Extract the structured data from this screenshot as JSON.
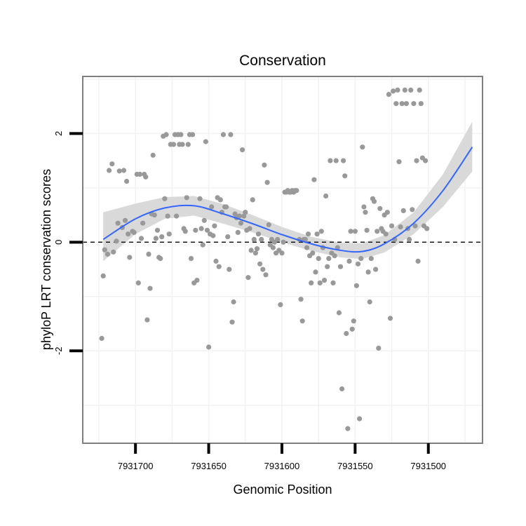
{
  "chart_data": {
    "type": "scatter",
    "title": "Conservation",
    "xlabel": "Genomic Position",
    "ylabel": "phyloP LRT conservation scores",
    "x_reversed": true,
    "xlim": [
      7931736,
      7931463
    ],
    "ylim": [
      -3.7,
      3.05
    ],
    "x_ticks": [
      7931700,
      7931650,
      7931600,
      7931550,
      7931500
    ],
    "x_tick_labels": [
      "7931700",
      "7931650",
      "7931600",
      "7931550",
      "7931500"
    ],
    "y_ticks": [
      -2,
      0,
      2
    ],
    "y_tick_labels": [
      "-2",
      "0",
      "2"
    ],
    "reference_line": {
      "y": 0,
      "style": "dashed",
      "color": "#000000"
    },
    "grid": true,
    "colors": {
      "points": "#999999",
      "trend": "#3366ff",
      "ribbon": "#d9d9d9",
      "panel_border": "#7f7f7f",
      "grid": "#f2f2f2"
    },
    "trend_line": {
      "x": [
        7931722,
        7931700,
        7931680,
        7931660,
        7931640,
        7931620,
        7931600,
        7931580,
        7931560,
        7931545,
        7931530,
        7931510,
        7931490,
        7931470
      ],
      "y": [
        0.05,
        0.43,
        0.63,
        0.67,
        0.52,
        0.34,
        0.14,
        -0.03,
        -0.15,
        -0.17,
        -0.03,
        0.35,
        0.95,
        1.75
      ],
      "ci_upper": [
        0.55,
        0.71,
        0.83,
        0.85,
        0.7,
        0.5,
        0.28,
        0.1,
        -0.01,
        -0.02,
        0.13,
        0.55,
        1.25,
        2.22
      ],
      "ci_lower": [
        -0.35,
        0.15,
        0.43,
        0.49,
        0.34,
        0.18,
        0.0,
        -0.16,
        -0.28,
        -0.31,
        -0.19,
        0.15,
        0.65,
        1.3
      ]
    },
    "points": [
      [
        7931723,
        -1.77
      ],
      [
        7931722,
        -0.62
      ],
      [
        7931721,
        -0.14
      ],
      [
        7931719,
        -0.22
      ],
      [
        7931718,
        1.32
      ],
      [
        7931716,
        1.44
      ],
      [
        7931715,
        -0.18
      ],
      [
        7931713,
        0.02
      ],
      [
        7931712,
        0.35
      ],
      [
        7931711,
        1.31
      ],
      [
        7931709,
        0.27
      ],
      [
        7931708,
        1.32
      ],
      [
        7931707,
        0.4
      ],
      [
        7931706,
        1.12
      ],
      [
        7931705,
        0.15
      ],
      [
        7931704,
        -0.28
      ],
      [
        7931702,
        0.2
      ],
      [
        7931701,
        0.18
      ],
      [
        7931699,
        1.25
      ],
      [
        7931698,
        -0.75
      ],
      [
        7931697,
        1.25
      ],
      [
        7931696,
        0.07
      ],
      [
        7931695,
        0.35
      ],
      [
        7931694,
        1.25
      ],
      [
        7931693,
        1.2
      ],
      [
        7931692,
        -1.43
      ],
      [
        7931691,
        -0.22
      ],
      [
        7931690,
        -0.85
      ],
      [
        7931689,
        0.52
      ],
      [
        7931688,
        1.6
      ],
      [
        7931687,
        0.5
      ],
      [
        7931686,
        0.07
      ],
      [
        7931685,
        0.22
      ],
      [
        7931684,
        -0.28
      ],
      [
        7931683,
        -0.3
      ],
      [
        7931682,
        0.1
      ],
      [
        7931681,
        1.95
      ],
      [
        7931680,
        0.8
      ],
      [
        7931679,
        1.98
      ],
      [
        7931678,
        0.48
      ],
      [
        7931677,
        0.15
      ],
      [
        7931676,
        1.8
      ],
      [
        7931674,
        1.8
      ],
      [
        7931673,
        1.98
      ],
      [
        7931672,
        0.48
      ],
      [
        7931671,
        1.98
      ],
      [
        7931670,
        1.8
      ],
      [
        7931669,
        1.98
      ],
      [
        7931668,
        1.8
      ],
      [
        7931667,
        0.25
      ],
      [
        7931666,
        0.2
      ],
      [
        7931665,
        0.82
      ],
      [
        7931664,
        1.8
      ],
      [
        7931663,
        1.98
      ],
      [
        7931662,
        -0.3
      ],
      [
        7931661,
        1.98
      ],
      [
        7931660,
        -0.75
      ],
      [
        7931659,
        0.22
      ],
      [
        7931658,
        -0.7
      ],
      [
        7931656,
        0.8
      ],
      [
        7931655,
        0.25
      ],
      [
        7931654,
        -0.05
      ],
      [
        7931653,
        0.4
      ],
      [
        7931652,
        1.85
      ],
      [
        7931651,
        0.22
      ],
      [
        7931650,
        -1.93
      ],
      [
        7931649,
        0.15
      ],
      [
        7931648,
        0.65
      ],
      [
        7931647,
        0.12
      ],
      [
        7931646,
        0.3
      ],
      [
        7931645,
        -0.35
      ],
      [
        7931644,
        0.82
      ],
      [
        7931643,
        -0.45
      ],
      [
        7931642,
        0.78
      ],
      [
        7931641,
        0.55
      ],
      [
        7931640,
        1.98
      ],
      [
        7931639,
        0.65
      ],
      [
        7931638,
        0.65
      ],
      [
        7931637,
        0.1
      ],
      [
        7931636,
        -0.5
      ],
      [
        7931635,
        1.98
      ],
      [
        7931634,
        -1.47
      ],
      [
        7931633,
        -1.1
      ],
      [
        7931632,
        0.52
      ],
      [
        7931631,
        0.45
      ],
      [
        7931630,
        0.18
      ],
      [
        7931629,
        0.48
      ],
      [
        7931628,
        0.35
      ],
      [
        7931627,
        1.7
      ],
      [
        7931626,
        0.48
      ],
      [
        7931625,
        0.55
      ],
      [
        7931624,
        0.22
      ],
      [
        7931623,
        -0.65
      ],
      [
        7931622,
        0.25
      ],
      [
        7931621,
        -0.15
      ],
      [
        7931620,
        0.78
      ],
      [
        7931619,
        0.05
      ],
      [
        7931618,
        -0.2
      ],
      [
        7931617,
        -0.12
      ],
      [
        7931616,
        0.15
      ],
      [
        7931615,
        -0.4
      ],
      [
        7931614,
        0.05
      ],
      [
        7931613,
        -0.5
      ],
      [
        7931612,
        1.42
      ],
      [
        7931611,
        -0.6
      ],
      [
        7931610,
        1.1
      ],
      [
        7931609,
        0.32
      ],
      [
        7931608,
        -0.05
      ],
      [
        7931607,
        0.05
      ],
      [
        7931606,
        -0.1
      ],
      [
        7931605,
        0.0
      ],
      [
        7931604,
        -0.2
      ],
      [
        7931603,
        0.05
      ],
      [
        7931602,
        -0.15
      ],
      [
        7931601,
        -1.15
      ],
      [
        7931600,
        -0.2
      ],
      [
        7931599,
        0.0
      ],
      [
        7931598,
        0.92
      ],
      [
        7931597,
        0.92
      ],
      [
        7931596,
        0.95
      ],
      [
        7931595,
        0.92
      ],
      [
        7931594,
        0.92
      ],
      [
        7931593,
        0.95
      ],
      [
        7931592,
        0.92
      ],
      [
        7931591,
        0.95
      ],
      [
        7931590,
        0.95
      ],
      [
        7931588,
        0.05
      ],
      [
        7931587,
        -1.05
      ],
      [
        7931586,
        -1.45
      ],
      [
        7931585,
        0.05
      ],
      [
        7931584,
        0.05
      ],
      [
        7931583,
        -0.1
      ],
      [
        7931582,
        0.15
      ],
      [
        7931581,
        -0.25
      ],
      [
        7931580,
        -0.75
      ],
      [
        7931579,
        -0.2
      ],
      [
        7931578,
        1.15
      ],
      [
        7931577,
        -0.55
      ],
      [
        7931576,
        0.15
      ],
      [
        7931575,
        -0.3
      ],
      [
        7931574,
        -0.75
      ],
      [
        7931573,
        0.2
      ],
      [
        7931572,
        -0.1
      ],
      [
        7931571,
        -0.7
      ],
      [
        7931570,
        0.85
      ],
      [
        7931569,
        -0.45
      ],
      [
        7931568,
        -0.3
      ],
      [
        7931567,
        1.5
      ],
      [
        7931566,
        -0.2
      ],
      [
        7931565,
        -0.75
      ],
      [
        7931564,
        -0.25
      ],
      [
        7931563,
        1.5
      ],
      [
        7931562,
        -0.1
      ],
      [
        7931561,
        -1.3
      ],
      [
        7931560,
        -0.45
      ],
      [
        7931559,
        -2.7
      ],
      [
        7931558,
        1.5
      ],
      [
        7931557,
        1.22
      ],
      [
        7931556,
        -1.68
      ],
      [
        7931555,
        -3.43
      ],
      [
        7931554,
        -0.35
      ],
      [
        7931553,
        0.2
      ],
      [
        7931552,
        -1.6
      ],
      [
        7931551,
        -1.45
      ],
      [
        7931550,
        0.2
      ],
      [
        7931549,
        -0.8
      ],
      [
        7931548,
        -0.4
      ],
      [
        7931547,
        -3.25
      ],
      [
        7931546,
        -0.3
      ],
      [
        7931545,
        1.75
      ],
      [
        7931544,
        0.65
      ],
      [
        7931543,
        0.55
      ],
      [
        7931542,
        0.22
      ],
      [
        7931541,
        -0.55
      ],
      [
        7931540,
        -1.1
      ],
      [
        7931539,
        -0.3
      ],
      [
        7931538,
        0.8
      ],
      [
        7931537,
        0.75
      ],
      [
        7931536,
        -0.5
      ],
      [
        7931535,
        0.2
      ],
      [
        7931534,
        -1.95
      ],
      [
        7931533,
        0.62
      ],
      [
        7931532,
        0.25
      ],
      [
        7931531,
        0.2
      ],
      [
        7931530,
        0.5
      ],
      [
        7931529,
        0.15
      ],
      [
        7931528,
        0.55
      ],
      [
        7931527,
        2.72
      ],
      [
        7931526,
        -1.4
      ],
      [
        7931525,
        0.3
      ],
      [
        7931524,
        2.78
      ],
      [
        7931523,
        0.05
      ],
      [
        7931522,
        2.55
      ],
      [
        7931521,
        2.8
      ],
      [
        7931520,
        1.48
      ],
      [
        7931519,
        0.28
      ],
      [
        7931518,
        2.55
      ],
      [
        7931517,
        0.58
      ],
      [
        7931516,
        2.8
      ],
      [
        7931515,
        2.55
      ],
      [
        7931514,
        0.25
      ],
      [
        7931513,
        0.05
      ],
      [
        7931512,
        2.8
      ],
      [
        7931511,
        0.6
      ],
      [
        7931510,
        2.55
      ],
      [
        7931509,
        0.3
      ],
      [
        7931508,
        1.5
      ],
      [
        7931507,
        -0.35
      ],
      [
        7931506,
        2.8
      ],
      [
        7931505,
        2.55
      ],
      [
        7931504,
        1.55
      ],
      [
        7931503,
        0.3
      ],
      [
        7931502,
        1.5
      ],
      [
        7931501,
        0.25
      ]
    ]
  }
}
